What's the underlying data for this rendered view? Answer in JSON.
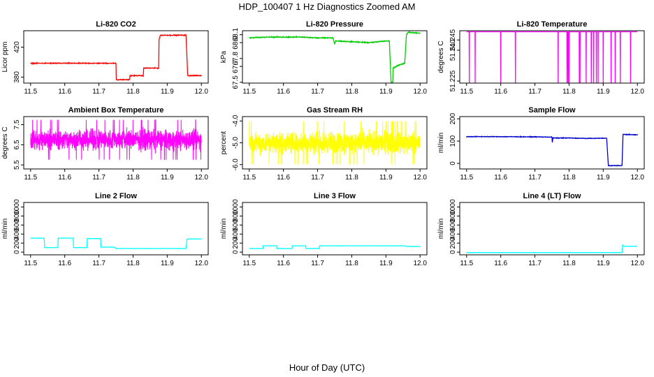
{
  "figure": {
    "title": "HDP_100407  1 Hz Diagnostics Zoomed AM",
    "xlabel": "Hour of Day (UTC)"
  },
  "chart_data": [
    {
      "type": "line",
      "title": "Li-820 CO2",
      "ylabel": "Licor ppm",
      "color": "#ff0000",
      "xlim": [
        11.48,
        12.02
      ],
      "ylim": [
        372,
        442
      ],
      "xticks": [
        11.5,
        11.6,
        11.7,
        11.8,
        11.9,
        12.0
      ],
      "xtick_labels": [
        "11.5",
        "11.6",
        "11.7",
        "11.8",
        "11.9",
        "12.0"
      ],
      "yticks": [
        380,
        420
      ],
      "ytick_labels": [
        "380",
        "420"
      ],
      "noise": 0.8,
      "points": [
        [
          11.5,
          398.5
        ],
        [
          11.6,
          398.5
        ],
        [
          11.75,
          398.5
        ],
        [
          11.751,
          376.5
        ],
        [
          11.79,
          376.5
        ],
        [
          11.791,
          382
        ],
        [
          11.83,
          382
        ],
        [
          11.831,
          392
        ],
        [
          11.875,
          392
        ],
        [
          11.876,
          430
        ],
        [
          11.88,
          436
        ],
        [
          11.955,
          436
        ],
        [
          11.96,
          382
        ],
        [
          12.0,
          382
        ]
      ]
    },
    {
      "type": "line",
      "title": "Li-820 Pressure",
      "ylabel": "kPa",
      "color": "#00cc00",
      "xlim": [
        11.48,
        12.02
      ],
      "ylim": [
        67.49,
        68.15
      ],
      "xticks": [
        11.5,
        11.6,
        11.7,
        11.8,
        11.9,
        12.0
      ],
      "xtick_labels": [
        "11.5",
        "11.6",
        "11.7",
        "11.8",
        "11.9",
        "12.0"
      ],
      "yticks": [
        67.5,
        67.7,
        67.8,
        68.0,
        68.1
      ],
      "ytick_labels": [
        "67.5",
        "67.7",
        "67.8",
        "68.0",
        "68.1"
      ],
      "noise": 0.008,
      "points": [
        [
          11.5,
          68.06
        ],
        [
          11.55,
          68.07
        ],
        [
          11.6,
          68.07
        ],
        [
          11.65,
          68.07
        ],
        [
          11.7,
          68.06
        ],
        [
          11.745,
          68.06
        ],
        [
          11.75,
          67.98
        ],
        [
          11.753,
          68.02
        ],
        [
          11.8,
          68.01
        ],
        [
          11.85,
          68.0
        ],
        [
          11.9,
          68.02
        ],
        [
          11.91,
          68.02
        ],
        [
          11.915,
          67.5
        ],
        [
          11.92,
          67.5
        ],
        [
          11.921,
          67.68
        ],
        [
          11.94,
          67.72
        ],
        [
          11.955,
          67.74
        ],
        [
          11.96,
          68.1
        ],
        [
          11.965,
          68.13
        ],
        [
          12.0,
          68.12
        ]
      ]
    },
    {
      "type": "line",
      "title": "Li-820 Temperature",
      "ylabel": "degrees C",
      "color": "#ff00ff",
      "xlim": [
        11.48,
        12.02
      ],
      "ylim": [
        51.224,
        51.2495
      ],
      "xticks": [
        11.5,
        11.6,
        11.7,
        11.8,
        11.9,
        12.0
      ],
      "xtick_labels": [
        "11.5",
        "11.6",
        "11.7",
        "11.8",
        "11.9",
        "12.0"
      ],
      "yticks": [
        51.225,
        51.24,
        51.245
      ],
      "ytick_labels": [
        "51.225",
        "51.240",
        "51.245"
      ],
      "baseline": 51.249,
      "drop_to": 51.224,
      "drops_at": [
        11.508,
        11.525,
        11.6,
        11.643,
        11.768,
        11.794,
        11.797,
        11.8,
        11.83,
        11.832,
        11.85,
        11.865,
        11.872,
        11.88,
        11.885,
        11.9,
        11.923,
        11.935,
        11.95,
        11.98
      ]
    },
    {
      "type": "line",
      "title": "Ambient Box Temperature",
      "ylabel": "degrees C",
      "color": "#ff00ff",
      "xlim": [
        11.48,
        12.02
      ],
      "ylim": [
        5.3,
        7.9
      ],
      "xticks": [
        11.5,
        11.6,
        11.7,
        11.8,
        11.9,
        12.0
      ],
      "xtick_labels": [
        "11.5",
        "11.6",
        "11.7",
        "11.8",
        "11.9",
        "12.0"
      ],
      "yticks": [
        5.5,
        6.5,
        7.5
      ],
      "ytick_labels": [
        "5.5",
        "6.5",
        "7.5"
      ],
      "noise_center": 6.75,
      "noise": 0.45
    },
    {
      "type": "line",
      "title": "Gas Stream RH",
      "ylabel": "percent",
      "color": "#ffff00",
      "xlim": [
        11.48,
        12.02
      ],
      "ylim": [
        -6.2,
        -3.8
      ],
      "xticks": [
        11.5,
        11.6,
        11.7,
        11.8,
        11.9,
        12.0
      ],
      "xtick_labels": [
        "11.5",
        "11.6",
        "11.7",
        "11.8",
        "11.9",
        "12.0"
      ],
      "yticks": [
        -6.0,
        -5.0,
        -4.0
      ],
      "ytick_labels": [
        "-6.0",
        "-5.0",
        "-4.0"
      ],
      "noise_center": -5.0,
      "noise": 0.45
    },
    {
      "type": "line",
      "title": "Sample Flow",
      "ylabel": "ml/min",
      "color": "#0000cc",
      "xlim": [
        11.48,
        12.02
      ],
      "ylim": [
        -25,
        210
      ],
      "xticks": [
        11.5,
        11.6,
        11.7,
        11.8,
        11.9,
        12.0
      ],
      "xtick_labels": [
        "11.5",
        "11.6",
        "11.7",
        "11.8",
        "11.9",
        "12.0"
      ],
      "yticks": [
        0,
        100,
        200
      ],
      "ytick_labels": [
        "0",
        "100",
        "200"
      ],
      "noise": 2,
      "points": [
        [
          11.5,
          120
        ],
        [
          11.6,
          120
        ],
        [
          11.7,
          119
        ],
        [
          11.75,
          118
        ],
        [
          11.751,
          95
        ],
        [
          11.753,
          114
        ],
        [
          11.8,
          114
        ],
        [
          11.85,
          112
        ],
        [
          11.91,
          113
        ],
        [
          11.915,
          -10
        ],
        [
          11.955,
          -10
        ],
        [
          11.958,
          130
        ],
        [
          12.0,
          128
        ]
      ]
    },
    {
      "type": "line",
      "title": "Line 2 Flow",
      "ylabel": "ml/min",
      "color": "#00ffff",
      "xlim": [
        11.48,
        12.02
      ],
      "ylim": [
        -60,
        1100
      ],
      "xticks": [
        11.5,
        11.6,
        11.7,
        11.8,
        11.9,
        12.0
      ],
      "xtick_labels": [
        "11.5",
        "11.6",
        "11.7",
        "11.8",
        "11.9",
        "12.0"
      ],
      "yticks": [
        0,
        200,
        400,
        600,
        800,
        1000
      ],
      "ytick_labels": [
        "0",
        "200",
        "400",
        "600",
        "800",
        "1000"
      ],
      "noise": 3,
      "points": [
        [
          11.5,
          310
        ],
        [
          11.54,
          310
        ],
        [
          11.541,
          100
        ],
        [
          11.58,
          100
        ],
        [
          11.581,
          310
        ],
        [
          11.625,
          310
        ],
        [
          11.626,
          100
        ],
        [
          11.665,
          100
        ],
        [
          11.666,
          300
        ],
        [
          11.705,
          300
        ],
        [
          11.706,
          110
        ],
        [
          11.745,
          110
        ],
        [
          11.75,
          80
        ],
        [
          11.955,
          80
        ],
        [
          11.958,
          290
        ],
        [
          12.0,
          290
        ]
      ]
    },
    {
      "type": "line",
      "title": "Line 3 Flow",
      "ylabel": "ml/min",
      "color": "#00ffff",
      "xlim": [
        11.48,
        12.02
      ],
      "ylim": [
        -60,
        1100
      ],
      "xticks": [
        11.5,
        11.6,
        11.7,
        11.8,
        11.9,
        12.0
      ],
      "xtick_labels": [
        "11.5",
        "11.6",
        "11.7",
        "11.8",
        "11.9",
        "12.0"
      ],
      "yticks": [
        0,
        200,
        400,
        600,
        800,
        1000
      ],
      "ytick_labels": [
        "0",
        "200",
        "400",
        "600",
        "800",
        "1000"
      ],
      "noise": 3,
      "points": [
        [
          11.5,
          80
        ],
        [
          11.54,
          80
        ],
        [
          11.541,
          140
        ],
        [
          11.58,
          140
        ],
        [
          11.581,
          80
        ],
        [
          11.625,
          80
        ],
        [
          11.626,
          140
        ],
        [
          11.665,
          140
        ],
        [
          11.666,
          80
        ],
        [
          11.705,
          80
        ],
        [
          11.706,
          140
        ],
        [
          11.955,
          140
        ],
        [
          11.96,
          125
        ],
        [
          12.0,
          125
        ]
      ]
    },
    {
      "type": "line",
      "title": "Line 4 (LT) Flow",
      "ylabel": "ml/min",
      "color": "#00ffff",
      "xlim": [
        11.48,
        12.02
      ],
      "ylim": [
        -60,
        1100
      ],
      "xticks": [
        11.5,
        11.6,
        11.7,
        11.8,
        11.9,
        12.0
      ],
      "xtick_labels": [
        "11.5",
        "11.6",
        "11.7",
        "11.8",
        "11.9",
        "12.0"
      ],
      "yticks": [
        0,
        200,
        400,
        600,
        800,
        1000
      ],
      "ytick_labels": [
        "0",
        "200",
        "400",
        "600",
        "800",
        "1000"
      ],
      "noise": 2,
      "points": [
        [
          11.5,
          -10
        ],
        [
          11.6,
          -10
        ],
        [
          11.7,
          -10
        ],
        [
          11.8,
          -10
        ],
        [
          11.9,
          -10
        ],
        [
          11.955,
          -10
        ],
        [
          11.957,
          160
        ],
        [
          11.96,
          130
        ],
        [
          12.0,
          130
        ]
      ]
    }
  ]
}
